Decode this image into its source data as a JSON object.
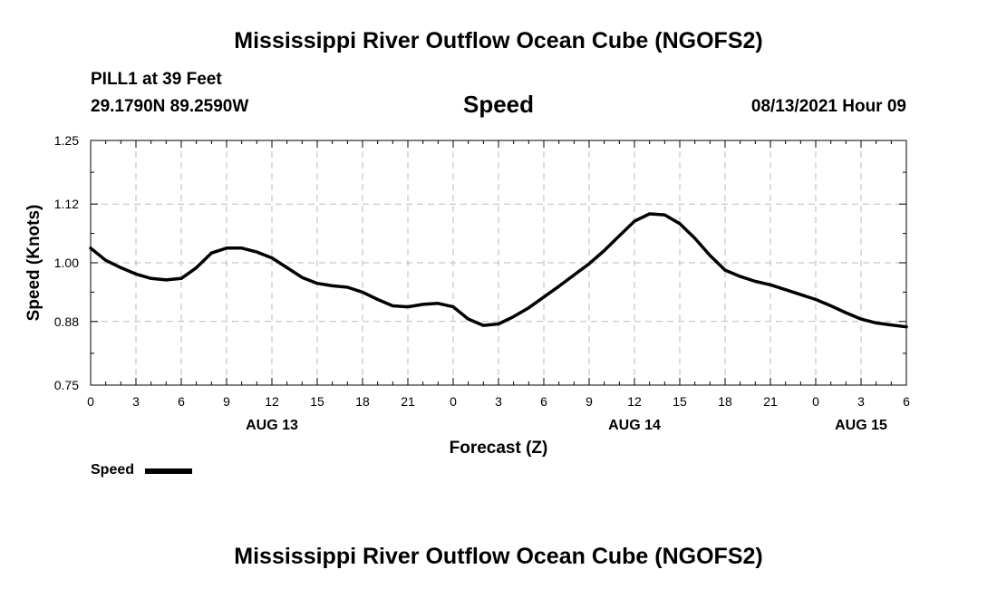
{
  "header": {
    "title": "Mississippi River Outflow Ocean Cube (NGOFS2)",
    "station": "PILL1 at 39 Feet",
    "coordinates": "29.1790N  89.2590W",
    "variable": "Speed",
    "forecast_time": "08/13/2021 Hour 09"
  },
  "footer": {
    "title": "Mississippi River Outflow Ocean Cube (NGOFS2)"
  },
  "legend": {
    "label": "Speed"
  },
  "chart_data": {
    "type": "line",
    "title": "Speed",
    "xlabel": "Forecast (Z)",
    "ylabel": "Speed (Knots)",
    "x_unit": "hours from 00Z Aug 13",
    "xlim": [
      0,
      54
    ],
    "ylim": [
      0.75,
      1.25
    ],
    "yticks": [
      "1.25",
      "1.12",
      "1.00",
      "0.88",
      "0.75"
    ],
    "ytick_values": [
      1.25,
      1.12,
      1.0,
      0.88,
      0.75
    ],
    "xticks": [
      "0",
      "3",
      "6",
      "9",
      "12",
      "15",
      "18",
      "21",
      "0",
      "3",
      "6",
      "9",
      "12",
      "15",
      "18",
      "21",
      "0",
      "3",
      "6"
    ],
    "xtick_values": [
      0,
      3,
      6,
      9,
      12,
      15,
      18,
      21,
      24,
      27,
      30,
      33,
      36,
      39,
      42,
      45,
      48,
      51,
      54
    ],
    "date_labels": [
      {
        "label": "AUG 13",
        "x": 12
      },
      {
        "label": "AUG 14",
        "x": 36
      },
      {
        "label": "AUG 15",
        "x": 51
      }
    ],
    "grid": true,
    "series": [
      {
        "name": "Speed",
        "color": "#000000",
        "x": [
          0,
          1,
          2,
          3,
          4,
          5,
          6,
          7,
          8,
          9,
          10,
          11,
          12,
          13,
          14,
          15,
          16,
          17,
          18,
          19,
          20,
          21,
          22,
          23,
          24,
          25,
          26,
          27,
          28,
          29,
          30,
          31,
          32,
          33,
          34,
          35,
          36,
          37,
          38,
          39,
          40,
          41,
          42,
          43,
          44,
          45,
          46,
          47,
          48,
          49,
          50,
          51,
          52,
          53,
          54
        ],
        "values": [
          1.03,
          1.005,
          0.99,
          0.977,
          0.968,
          0.965,
          0.968,
          0.99,
          1.02,
          1.03,
          1.03,
          1.022,
          1.01,
          0.99,
          0.97,
          0.958,
          0.953,
          0.95,
          0.94,
          0.925,
          0.912,
          0.91,
          0.915,
          0.917,
          0.91,
          0.885,
          0.872,
          0.875,
          0.89,
          0.908,
          0.93,
          0.952,
          0.975,
          0.998,
          1.025,
          1.055,
          1.085,
          1.1,
          1.098,
          1.08,
          1.05,
          1.015,
          0.985,
          0.972,
          0.962,
          0.955,
          0.945,
          0.935,
          0.925,
          0.912,
          0.898,
          0.885,
          0.877,
          0.873,
          0.869
        ]
      }
    ]
  }
}
